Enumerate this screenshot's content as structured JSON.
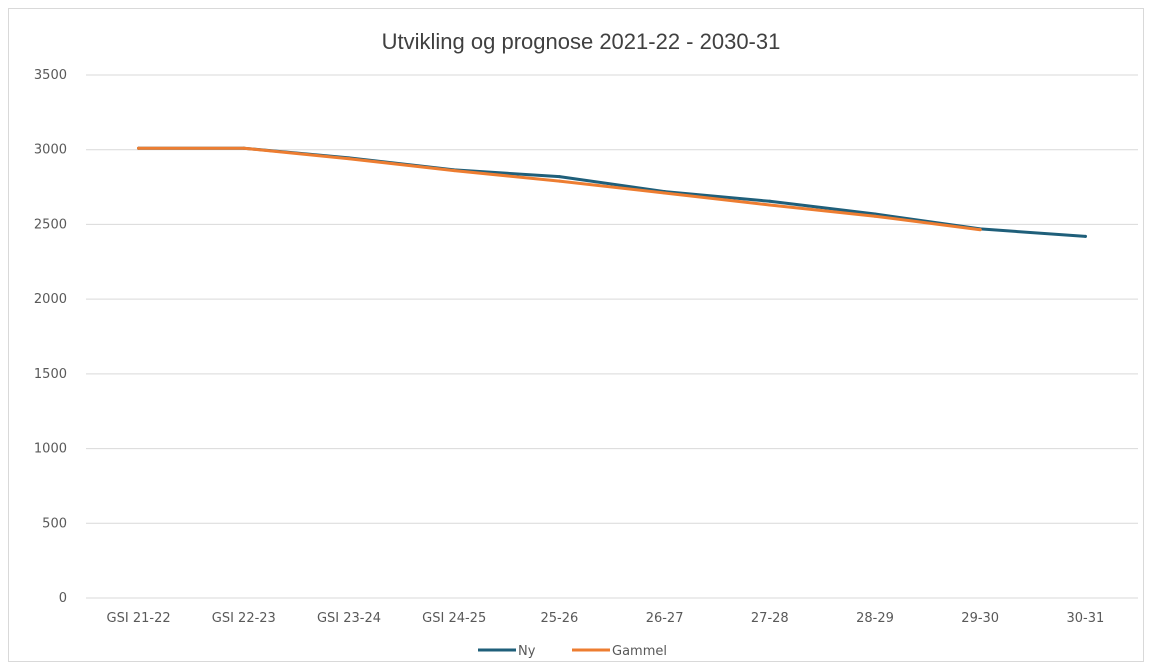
{
  "chart_data": {
    "type": "line",
    "title": "Utvikling og prognose 2021-22 - 2030-31",
    "categories": [
      "GSI 21-22",
      "GSI 22-23",
      "GSI 23-24",
      "GSI 24-25",
      "25-26",
      "26-27",
      "27-28",
      "28-29",
      "29-30",
      "30-31"
    ],
    "series": [
      {
        "name": "Ny",
        "color": "#1f5f7a",
        "values": [
          3010,
          3010,
          2945,
          2865,
          2820,
          2720,
          2655,
          2570,
          2470,
          2420
        ]
      },
      {
        "name": "Gammel",
        "color": "#ed7d31",
        "values": [
          3010,
          3010,
          2940,
          2860,
          2790,
          2710,
          2630,
          2555,
          2465,
          null
        ]
      }
    ],
    "ylim": [
      0,
      3500
    ],
    "yticks": [
      0,
      500,
      1000,
      1500,
      2000,
      2500,
      3000,
      3500
    ],
    "grid": true,
    "legend_position": "bottom"
  }
}
